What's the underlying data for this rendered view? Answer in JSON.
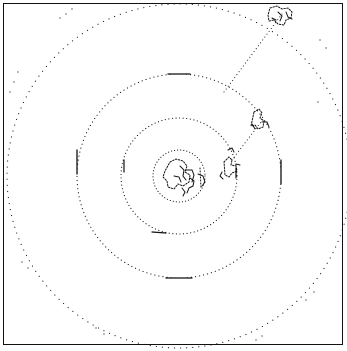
{
  "diagram": {
    "kind": "concentric-dotted-rings",
    "line_color": "#111111",
    "background_color": "#ffffff",
    "ring_count": 4,
    "rays": 2,
    "clusters": 4
  }
}
